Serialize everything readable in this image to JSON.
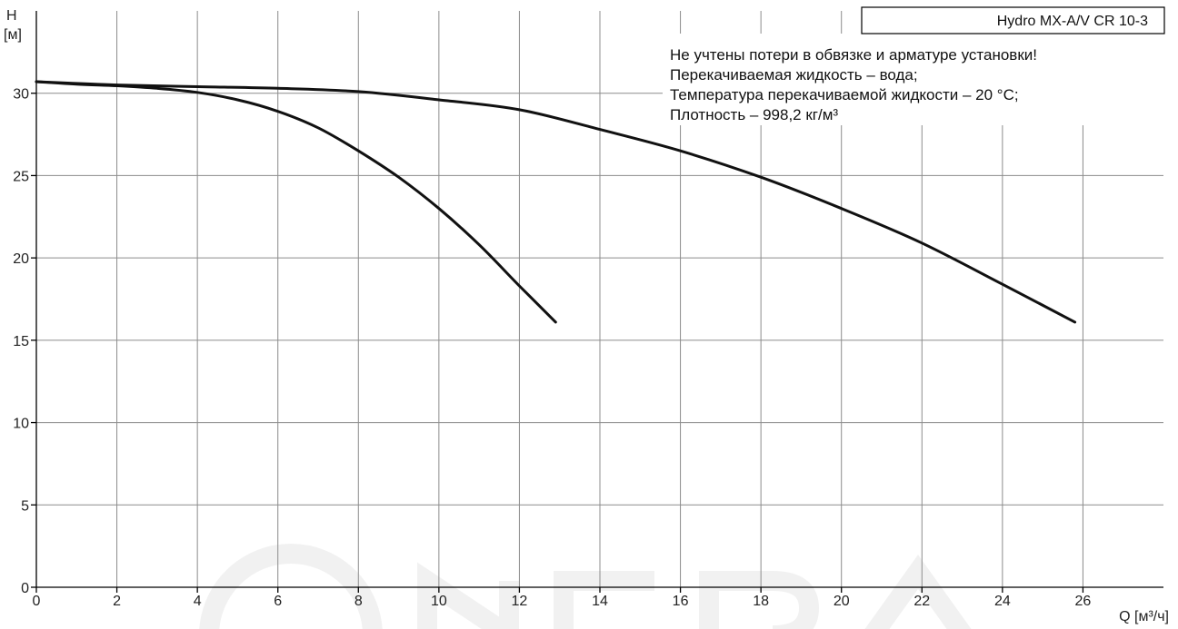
{
  "chart_data": {
    "type": "line",
    "title": "Hydro MX-A/V CR 10-3",
    "notes": [
      "Не учтены потери в обвязке и арматуре установки!",
      "Перекачиваемая жидкость – вода;",
      "Температура перекачиваемой жидкости – 20 °C;",
      "Плотность – 998,2 кг/м³"
    ],
    "ylabel_line1": "H",
    "ylabel_line2": "[м]",
    "xlabel": "Q [м³/ч]",
    "xlim": [
      0,
      28
    ],
    "ylim": [
      0,
      35
    ],
    "xticks": [
      0,
      2,
      4,
      6,
      8,
      10,
      12,
      14,
      16,
      18,
      20,
      22,
      24,
      26
    ],
    "yticks": [
      0,
      5,
      10,
      15,
      20,
      25,
      30
    ],
    "grid": true,
    "series": [
      {
        "values": [
          [
            0,
            30.7
          ],
          [
            1,
            30.55
          ],
          [
            2,
            30.45
          ],
          [
            3,
            30.3
          ],
          [
            4,
            30.05
          ],
          [
            5,
            29.6
          ],
          [
            6,
            28.9
          ],
          [
            7,
            27.9
          ],
          [
            8,
            26.5
          ],
          [
            9,
            24.9
          ],
          [
            10,
            23.0
          ],
          [
            11,
            20.8
          ],
          [
            12,
            18.3
          ],
          [
            12.9,
            16.1
          ]
        ]
      },
      {
        "values": [
          [
            0,
            30.7
          ],
          [
            2,
            30.5
          ],
          [
            4,
            30.4
          ],
          [
            6,
            30.3
          ],
          [
            8,
            30.1
          ],
          [
            10,
            29.6
          ],
          [
            12,
            29.0
          ],
          [
            14,
            27.8
          ],
          [
            16,
            26.5
          ],
          [
            18,
            24.9
          ],
          [
            20,
            23.0
          ],
          [
            22,
            20.9
          ],
          [
            24,
            18.4
          ],
          [
            25.8,
            16.1
          ]
        ]
      }
    ]
  }
}
